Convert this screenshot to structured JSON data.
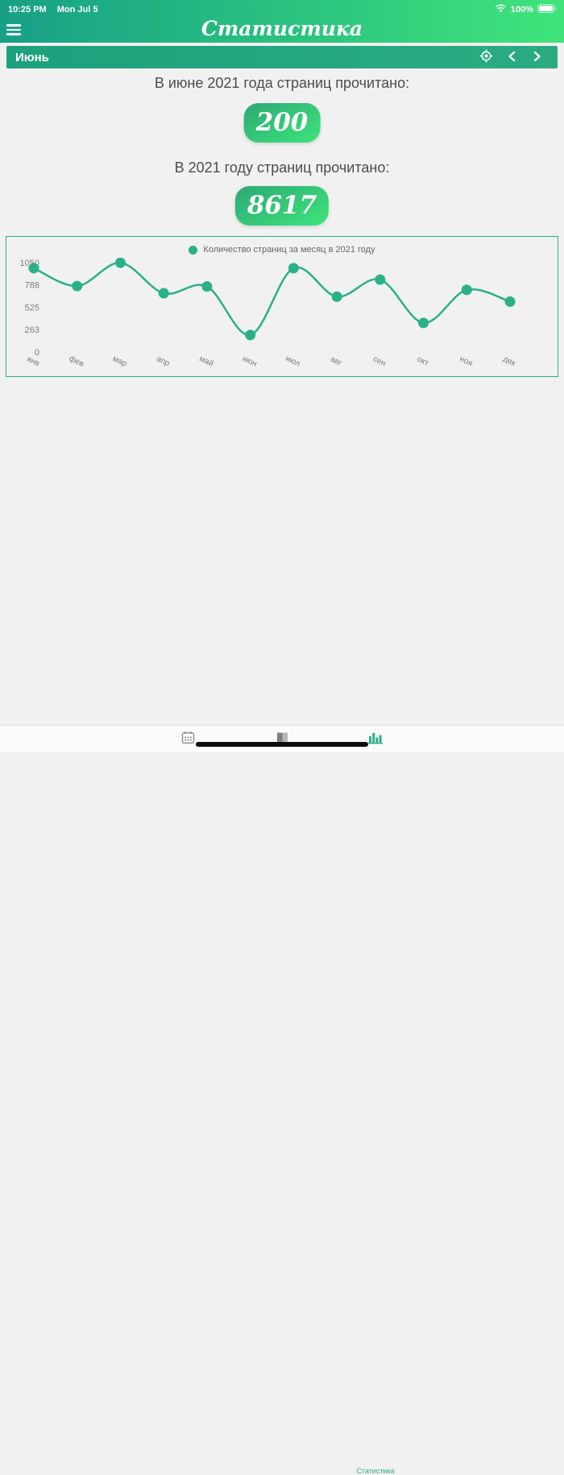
{
  "status_bar": {
    "time": "10:25 PM",
    "date": "Mon Jul 5",
    "battery": "100%"
  },
  "header": {
    "title": "Статистика"
  },
  "month_bar": {
    "label": "Июнь"
  },
  "stats": {
    "month_label": "В июне 2021 года страниц прочитано:",
    "month_value": "200",
    "year_label": "В 2021 году страниц прочитано:",
    "year_value": "8617"
  },
  "chart_data": {
    "type": "line",
    "legend": "Количество страниц за месяц в 2021 году",
    "categories": [
      "янв",
      "фев",
      "мар",
      "апр",
      "май",
      "июн",
      "июл",
      "авг",
      "сен",
      "окт",
      "ноя",
      "дек"
    ],
    "values": [
      985,
      775,
      1048,
      690,
      770,
      200,
      985,
      650,
      850,
      342,
      730,
      592
    ],
    "ylim": [
      0,
      1050
    ],
    "yticks": [
      0,
      263,
      525,
      788,
      1050
    ],
    "line_color": "#2ab187",
    "grid": false,
    "legend_position": "top",
    "x_label_rotation": 25
  },
  "tab_bar": {
    "items": [
      {
        "name": "calendar",
        "label": ""
      },
      {
        "name": "book",
        "label": ""
      },
      {
        "name": "statistics",
        "label": "Статистика",
        "active": true
      }
    ]
  },
  "colors": {
    "header_gradient_left": "#17a086",
    "header_gradient_right": "#41e47b",
    "month_bar": "#22a47e",
    "badge_gradient_start": "#2fa875",
    "badge_gradient_end": "#3ce57b",
    "accent": "#2ab187",
    "text_dark": "#4c4c4c",
    "page_bg": "#f1f1f1"
  }
}
